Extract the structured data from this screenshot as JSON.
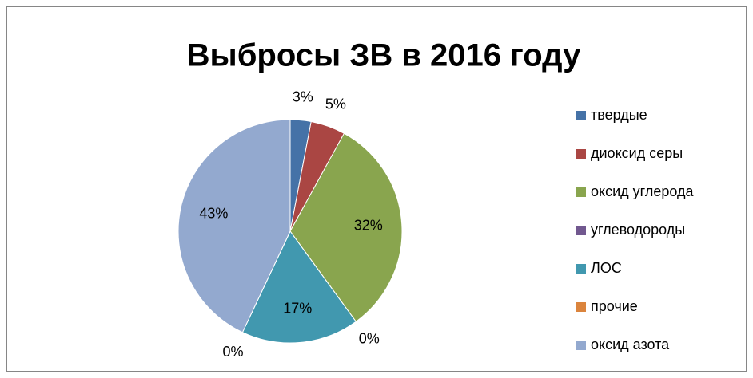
{
  "chart_data": {
    "type": "pie",
    "title": "Выбросы ЗВ в 2016 году",
    "categories": [
      "твердые",
      "диоксид серы",
      "оксид углерода",
      "углеводороды",
      "ЛОС",
      "прочие",
      "оксид азота"
    ],
    "values": [
      3,
      5,
      32,
      0,
      17,
      0,
      43
    ],
    "value_labels": [
      "3%",
      "5%",
      "32%",
      "0%",
      "17%",
      "0%",
      "43%"
    ],
    "colors": [
      "#4572a7",
      "#aa4643",
      "#89a54e",
      "#71588f",
      "#4198af",
      "#db843d",
      "#93a9cf"
    ],
    "legend": "right"
  }
}
